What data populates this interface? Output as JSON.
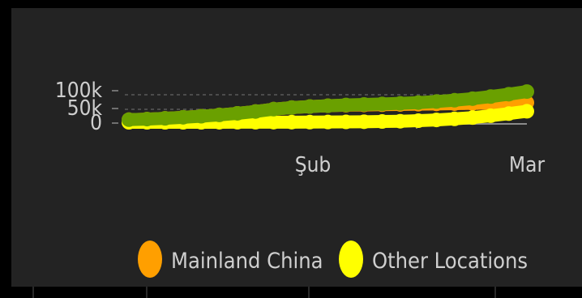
{
  "chart_data": {
    "type": "line",
    "x_tick_labels": [
      "Şub",
      "Mar"
    ],
    "y_tick_labels": [
      "100k",
      "50k",
      "0"
    ],
    "ylim": [
      0,
      100000
    ],
    "grid": "dashed-horizontal",
    "legend_position": "bottom",
    "series": [
      {
        "name": "Mainland China",
        "color": "#ff9f00",
        "values": [
          10000,
          12000,
          15000,
          19000,
          23000,
          28000,
          34000,
          41000,
          50000,
          56000,
          60000,
          63000,
          65000,
          66000,
          67000,
          68000,
          69000,
          70000,
          71000,
          72000,
          73000,
          74000,
          75000
        ]
      },
      {
        "name": "Other Locations",
        "color": "#ffff00",
        "values": [
          0,
          0,
          0,
          0,
          0,
          100,
          200,
          300,
          400,
          500,
          700,
          1000,
          1500,
          2000,
          3000,
          4000,
          6000,
          9000,
          13000,
          18000,
          25000,
          33000,
          42000
        ]
      },
      {
        "name": "",
        "color": "#6aa000",
        "values": [
          10000,
          12000,
          15000,
          19000,
          23000,
          28000,
          34000,
          41000,
          50000,
          56000,
          60000,
          63000,
          66000,
          68000,
          70000,
          72000,
          75000,
          79000,
          84000,
          90000,
          98000,
          107000,
          117000
        ]
      }
    ]
  }
}
